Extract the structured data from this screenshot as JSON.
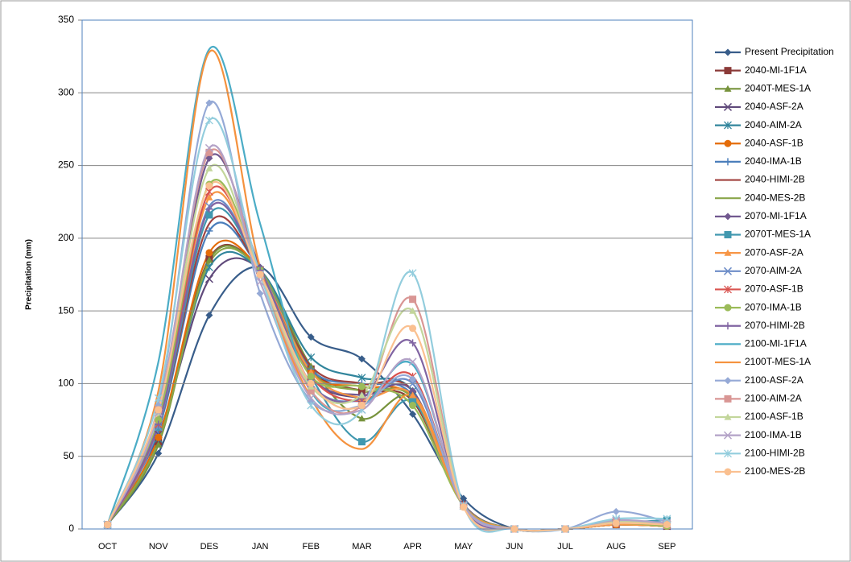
{
  "chart_data": {
    "type": "line",
    "y_label": "Precipitation (mm)",
    "categories": [
      "OCT",
      "NOV",
      "DES",
      "JAN",
      "FEB",
      "MAR",
      "APR",
      "MAY",
      "JUN",
      "JUL",
      "AUG",
      "SEP"
    ],
    "ylim": [
      0,
      350
    ],
    "yticks": [
      0,
      50,
      100,
      150,
      200,
      250,
      300,
      350
    ],
    "grid": true,
    "legend": "right",
    "smooth": true,
    "series": [
      {
        "name": "Present Precipitation",
        "color": "#385d8a",
        "marker": "diamond",
        "values": [
          3,
          52,
          147,
          180,
          132,
          117,
          79,
          21,
          0,
          0,
          3,
          2
        ]
      },
      {
        "name": "2040-MI-1F1A",
        "color": "#8b3a38",
        "marker": "square",
        "values": [
          3,
          60,
          186,
          178,
          110,
          95,
          88,
          17,
          0,
          0,
          3,
          2
        ]
      },
      {
        "name": "2040T-MES-1A",
        "color": "#77933c",
        "marker": "triangle",
        "values": [
          3,
          58,
          185,
          178,
          112,
          76,
          90,
          16,
          0,
          0,
          3,
          2
        ]
      },
      {
        "name": "2040-ASF-2A",
        "color": "#604a7b",
        "marker": "x",
        "values": [
          3,
          65,
          172,
          178,
          105,
          90,
          92,
          16,
          0,
          0,
          4,
          2
        ]
      },
      {
        "name": "2040-AIM-2A",
        "color": "#31859c",
        "marker": "asterisk",
        "values": [
          3,
          62,
          180,
          178,
          118,
          104,
          95,
          17,
          0,
          0,
          4,
          3
        ]
      },
      {
        "name": "2040-ASF-1B",
        "color": "#e46c0a",
        "marker": "circle",
        "values": [
          3,
          63,
          190,
          178,
          108,
          98,
          90,
          16,
          0,
          0,
          3,
          2
        ]
      },
      {
        "name": "2040-IMA-1B",
        "color": "#4a7ebb",
        "marker": "plus",
        "values": [
          3,
          68,
          205,
          178,
          110,
          100,
          92,
          17,
          0,
          0,
          4,
          3
        ]
      },
      {
        "name": "2040-HIMI-2B",
        "color": "#a0413e",
        "marker": "none",
        "values": [
          3,
          70,
          210,
          178,
          112,
          100,
          95,
          17,
          0,
          0,
          3,
          2
        ]
      },
      {
        "name": "2040-MES-2B",
        "color": "#8aa64a",
        "marker": "none",
        "values": [
          3,
          60,
          183,
          178,
          108,
          95,
          90,
          16,
          0,
          0,
          3,
          2
        ]
      },
      {
        "name": "2070-MI-1F1A",
        "color": "#71588f",
        "marker": "diamond",
        "values": [
          3,
          75,
          255,
          180,
          105,
          92,
          95,
          16,
          0,
          0,
          4,
          2
        ]
      },
      {
        "name": "2070T-MES-1A",
        "color": "#4198af",
        "marker": "square",
        "values": [
          3,
          70,
          216,
          178,
          105,
          60,
          88,
          16,
          0,
          0,
          4,
          6
        ]
      },
      {
        "name": "2070-ASF-2A",
        "color": "#f79646",
        "marker": "triangle",
        "values": [
          3,
          72,
          228,
          178,
          108,
          90,
          92,
          16,
          0,
          0,
          3,
          2
        ]
      },
      {
        "name": "2070-AIM-2A",
        "color": "#6d8dc8",
        "marker": "x",
        "values": [
          3,
          70,
          222,
          178,
          100,
          88,
          100,
          17,
          0,
          0,
          4,
          3
        ]
      },
      {
        "name": "2070-ASF-1B",
        "color": "#d9534f",
        "marker": "asterisk",
        "values": [
          3,
          72,
          232,
          178,
          105,
          88,
          105,
          16,
          0,
          0,
          4,
          3
        ]
      },
      {
        "name": "2070-IMA-1B",
        "color": "#9bbb59",
        "marker": "circle",
        "values": [
          3,
          75,
          237,
          178,
          105,
          98,
          85,
          16,
          0,
          0,
          4,
          2
        ]
      },
      {
        "name": "2070-HIMI-2B",
        "color": "#8064a2",
        "marker": "plus",
        "values": [
          3,
          72,
          220,
          178,
          100,
          90,
          128,
          16,
          0,
          0,
          4,
          3
        ]
      },
      {
        "name": "2100-MI-1F1A",
        "color": "#4bacc6",
        "marker": "none",
        "values": [
          3,
          115,
          330,
          210,
          95,
          85,
          113,
          17,
          0,
          0,
          5,
          3
        ]
      },
      {
        "name": "2100T-MES-1A",
        "color": "#f5923e",
        "marker": "none",
        "values": [
          3,
          95,
          328,
          180,
          90,
          55,
          92,
          16,
          0,
          0,
          4,
          3
        ]
      },
      {
        "name": "2100-ASF-2A",
        "color": "#95a9d6",
        "marker": "diamond",
        "values": [
          3,
          85,
          293,
          162,
          88,
          85,
          103,
          16,
          0,
          0,
          12,
          5
        ]
      },
      {
        "name": "2100-AIM-2A",
        "color": "#d99694",
        "marker": "square",
        "values": [
          3,
          82,
          259,
          175,
          95,
          85,
          158,
          16,
          0,
          0,
          5,
          4
        ]
      },
      {
        "name": "2100-ASF-1B",
        "color": "#c3d69b",
        "marker": "triangle",
        "values": [
          3,
          80,
          248,
          175,
          98,
          92,
          150,
          16,
          0,
          0,
          5,
          3
        ]
      },
      {
        "name": "2100-IMA-1B",
        "color": "#b3a2c7",
        "marker": "x",
        "values": [
          3,
          80,
          262,
          170,
          90,
          82,
          115,
          16,
          0,
          0,
          6,
          4
        ]
      },
      {
        "name": "2100-HIMI-2B",
        "color": "#93cddd",
        "marker": "asterisk",
        "values": [
          3,
          90,
          281,
          175,
          85,
          82,
          176,
          16,
          0,
          0,
          7,
          7
        ]
      },
      {
        "name": "2100-MES-2B",
        "color": "#fac090",
        "marker": "circle",
        "values": [
          3,
          82,
          236,
          175,
          100,
          85,
          138,
          15,
          0,
          0,
          4,
          3
        ]
      }
    ]
  }
}
